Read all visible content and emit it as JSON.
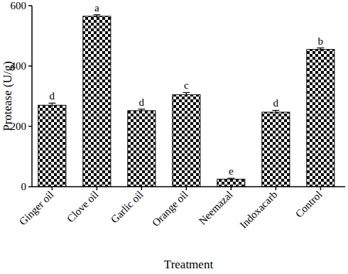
{
  "chart_data": {
    "type": "bar",
    "x_label": "Treatment",
    "y_label": "Protease (U/g)",
    "categories": [
      "Ginger oil",
      "Clove oil",
      "Garlic oil",
      "Orange oil",
      "Neemazal",
      "Indoxacarb",
      "Control"
    ],
    "values": [
      270,
      565,
      252,
      305,
      25,
      247,
      455
    ],
    "errors": [
      7,
      5,
      5,
      7,
      3,
      6,
      5
    ],
    "annotations": [
      "d",
      "a",
      "d",
      "c",
      "e",
      "d",
      "b"
    ],
    "color": "#000000",
    "ylim": [
      0,
      600
    ],
    "yticks": [
      0,
      200,
      400,
      600
    ],
    "grid": false
  }
}
